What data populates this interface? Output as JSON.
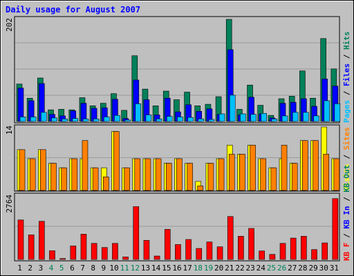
{
  "title": "Daily usage for August 2007",
  "colors": {
    "background": "#C0C0C0",
    "panel": "#BFBFBF",
    "title": "#0000FF",
    "axis_text": "#000000",
    "weekend_day": "#00805A",
    "hits": "#00805A",
    "files": "#0000FF",
    "pages": "#00C0FF",
    "visits": "#FFFF00",
    "sites": "#FF8000",
    "kb_out": "#FF8000",
    "kb_f": "#FF0000",
    "kb_in": "#0000FF"
  },
  "chart_data": [
    {
      "type": "bar",
      "panel": "hits-files-pages",
      "ymax_label": "202",
      "ylim": [
        0,
        202
      ],
      "legend": [
        {
          "text": "Pages",
          "color": "#00C0FF"
        },
        {
          "text": " / ",
          "color": "#000000"
        },
        {
          "text": "Files",
          "color": "#0000FF"
        },
        {
          "text": " / ",
          "color": "#000000"
        },
        {
          "text": "Hits",
          "color": "#00805A"
        }
      ],
      "categories": [
        "1",
        "2",
        "3",
        "4",
        "5",
        "6",
        "7",
        "8",
        "9",
        "10",
        "11",
        "12",
        "13",
        "14",
        "15",
        "16",
        "17",
        "18",
        "19",
        "20",
        "21",
        "22",
        "23",
        "24",
        "25",
        "26",
        "27",
        "28",
        "29",
        "30",
        "31"
      ],
      "series": [
        {
          "name": "Hits",
          "values": [
            74,
            46,
            86,
            23,
            24,
            23,
            47,
            31,
            36,
            55,
            22,
            130,
            64,
            31,
            60,
            43,
            58,
            31,
            34,
            49,
            202,
            24,
            72,
            32,
            12,
            45,
            50,
            100,
            46,
            164,
            104
          ]
        },
        {
          "name": "Files",
          "values": [
            66,
            41,
            75,
            14,
            11,
            21,
            36,
            26,
            27,
            44,
            6,
            82,
            43,
            13,
            46,
            19,
            33,
            20,
            25,
            14,
            142,
            13,
            48,
            15,
            7,
            36,
            38,
            45,
            30,
            84,
            70
          ]
        },
        {
          "name": "Pages",
          "values": [
            9,
            9,
            18,
            7,
            5,
            6,
            5,
            5,
            9,
            12,
            3,
            35,
            13,
            5,
            10,
            9,
            8,
            5,
            4,
            15,
            52,
            15,
            14,
            16,
            5,
            11,
            18,
            18,
            11,
            41,
            35
          ]
        }
      ]
    },
    {
      "type": "bar",
      "panel": "visits-sites",
      "ymax_label": "14",
      "ylim": [
        0,
        14
      ],
      "legend": [
        {
          "text": "Visits",
          "color": "#FFFF00"
        },
        {
          "text": " / ",
          "color": "#000000"
        },
        {
          "text": "Sites",
          "color": "#FF8000"
        }
      ],
      "categories": [
        "1",
        "2",
        "3",
        "4",
        "5",
        "6",
        "7",
        "8",
        "9",
        "10",
        "11",
        "12",
        "13",
        "14",
        "15",
        "16",
        "17",
        "18",
        "19",
        "20",
        "21",
        "22",
        "23",
        "24",
        "25",
        "26",
        "27",
        "28",
        "29",
        "30",
        "31"
      ],
      "series": [
        {
          "name": "Visits",
          "values": [
            9,
            7,
            9,
            6,
            5,
            7,
            7,
            5,
            5,
            13,
            5,
            7,
            7,
            7,
            6,
            7,
            6,
            2,
            6,
            7,
            10,
            8,
            10,
            7,
            5,
            7,
            6,
            11,
            11,
            14,
            7
          ]
        },
        {
          "name": "Sites",
          "values": [
            9,
            7,
            9,
            6,
            5,
            7,
            11,
            5,
            3,
            13,
            5,
            7,
            7,
            7,
            6,
            7,
            6,
            1,
            6,
            7,
            8,
            8,
            10,
            7,
            5,
            10,
            6,
            11,
            11,
            8,
            7
          ]
        }
      ]
    },
    {
      "type": "bar",
      "panel": "kb",
      "ymax_label": "2764",
      "ylim": [
        0,
        2764
      ],
      "legend": [
        {
          "text": "KB F",
          "color": "#FF0000"
        },
        {
          "text": " / ",
          "color": "#000000"
        },
        {
          "text": "KB In",
          "color": "#0000FF"
        },
        {
          "text": " / ",
          "color": "#000000"
        },
        {
          "text": "KB Out",
          "color": "#00805A"
        }
      ],
      "categories": [
        "1",
        "2",
        "3",
        "4",
        "5",
        "6",
        "7",
        "8",
        "9",
        "10",
        "11",
        "12",
        "13",
        "14",
        "15",
        "16",
        "17",
        "18",
        "19",
        "20",
        "21",
        "22",
        "23",
        "24",
        "25",
        "26",
        "27",
        "28",
        "29",
        "30",
        "31"
      ],
      "weekend_days": [
        "4",
        "5",
        "11",
        "12",
        "18",
        "19",
        "25",
        "26"
      ],
      "series": [
        {
          "name": "KB F",
          "values": [
            1720,
            1070,
            1660,
            380,
            40,
            590,
            1100,
            700,
            520,
            700,
            110,
            2300,
            830,
            150,
            1310,
            650,
            870,
            480,
            760,
            550,
            1870,
            1010,
            1350,
            370,
            220,
            700,
            930,
            1010,
            430,
            720,
            2650
          ]
        }
      ]
    }
  ]
}
